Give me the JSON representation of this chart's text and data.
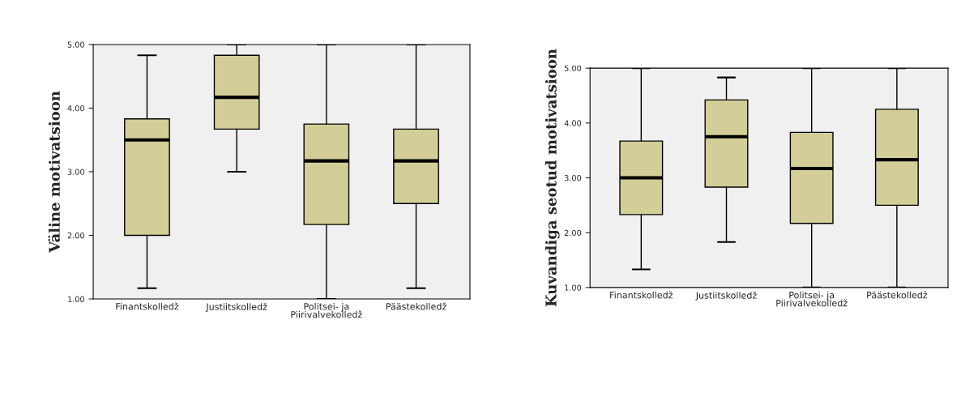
{
  "chart_data": [
    {
      "type": "box",
      "ylabel": "Väline motivatsioon",
      "categories": [
        "Finantskolledž",
        "Justiitskolledž",
        "Politsei- ja\nPiirivalvekolledž",
        "Päästekolledž"
      ],
      "ylim": [
        1.0,
        5.0
      ],
      "yticks": [
        {
          "value": 1,
          "label": "1.00"
        },
        {
          "value": 2,
          "label": "2.00"
        },
        {
          "value": 3,
          "label": "3.00"
        },
        {
          "value": 4,
          "label": "4.00"
        },
        {
          "value": 5,
          "label": "5.00"
        }
      ],
      "grid": false,
      "color": "#d3ce97",
      "boxes": [
        {
          "low": 1.17,
          "q1": 2.0,
          "median": 3.5,
          "q3": 3.83,
          "high": 4.83
        },
        {
          "low": 3.0,
          "q1": 3.67,
          "median": 4.17,
          "q3": 4.83,
          "high": 5.0
        },
        {
          "low": 1.0,
          "q1": 2.17,
          "median": 3.17,
          "q3": 3.75,
          "high": 5.0
        },
        {
          "low": 1.17,
          "q1": 2.5,
          "median": 3.17,
          "q3": 3.67,
          "high": 5.0
        }
      ]
    },
    {
      "type": "box",
      "ylabel": "Kuvandiga seotud motivatsioon",
      "categories": [
        "Finantskolledž",
        "Justiitskolledž",
        "Politsei- ja\nPiirivalvekolledž",
        "Päästekolledž"
      ],
      "ylim": [
        1.0,
        5.0
      ],
      "yticks": [
        {
          "value": 1,
          "label": "1.00"
        },
        {
          "value": 2,
          "label": "2.00"
        },
        {
          "value": 3,
          "label": "3.00"
        },
        {
          "value": 4,
          "label": "4.00"
        },
        {
          "value": 5,
          "label": "5.00"
        }
      ],
      "grid": false,
      "color": "#d3ce97",
      "boxes": [
        {
          "low": 1.33,
          "q1": 2.33,
          "median": 3.0,
          "q3": 3.67,
          "high": 5.0
        },
        {
          "low": 1.83,
          "q1": 2.83,
          "median": 3.75,
          "q3": 4.42,
          "high": 4.83
        },
        {
          "low": 1.0,
          "q1": 2.17,
          "median": 3.17,
          "q3": 3.83,
          "high": 5.0
        },
        {
          "low": 1.0,
          "q1": 2.5,
          "median": 3.33,
          "q3": 4.25,
          "high": 5.0
        }
      ]
    }
  ]
}
